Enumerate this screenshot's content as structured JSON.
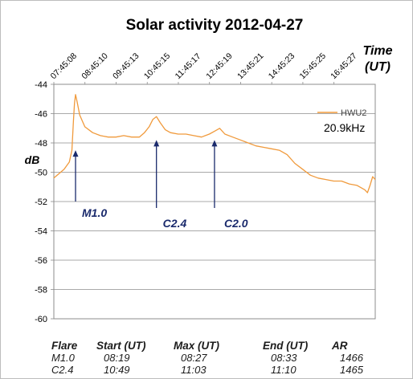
{
  "chart_data": {
    "type": "line",
    "title": "Solar activity 2012-04-27",
    "xlabel": "Time (UT)",
    "xlabel_line1": "Time",
    "xlabel_line2": "(UT)",
    "ylabel": "dB",
    "ylim": [
      -60,
      -44
    ],
    "yticks": [
      -44,
      -46,
      -48,
      -50,
      -52,
      -54,
      -56,
      -58,
      -60
    ],
    "ytick_labels": [
      "-44",
      "-46",
      "-48",
      "-50",
      "-52",
      "-54",
      "-56",
      "-58",
      "-60"
    ],
    "xlim": [
      "07:45:08",
      "18:05:00"
    ],
    "xtick_labels": [
      "07:45:08",
      "08:45:10",
      "09:45:13",
      "10:45:15",
      "11:45:17",
      "12:45:19",
      "13:45:21",
      "14:45:23",
      "15:45:25",
      "16:45:27"
    ],
    "grid": "horizontal",
    "legend_position": "top-right",
    "series": [
      {
        "name": "HWU2",
        "label": "20.9kHz",
        "color": "#f09a3c",
        "x": [
          "07:45",
          "07:55",
          "08:05",
          "08:15",
          "08:20",
          "08:23",
          "08:25",
          "08:27",
          "08:30",
          "08:35",
          "08:45",
          "09:00",
          "09:15",
          "09:30",
          "09:45",
          "10:00",
          "10:15",
          "10:30",
          "10:40",
          "10:49",
          "10:56",
          "11:03",
          "11:10",
          "11:20",
          "11:30",
          "11:45",
          "12:00",
          "12:15",
          "12:30",
          "12:45",
          "12:55",
          "13:05",
          "13:15",
          "13:30",
          "13:45",
          "14:00",
          "14:15",
          "14:30",
          "14:45",
          "15:00",
          "15:15",
          "15:30",
          "15:45",
          "16:00",
          "16:15",
          "16:30",
          "16:45",
          "17:00",
          "17:15",
          "17:30",
          "17:45",
          "17:50",
          "17:55",
          "18:00",
          "18:05"
        ],
        "y": [
          -50.4,
          -50.1,
          -49.8,
          -49.3,
          -48.5,
          -46.5,
          -45.3,
          -44.7,
          -45.2,
          -46.1,
          -46.9,
          -47.3,
          -47.5,
          -47.6,
          -47.6,
          -47.5,
          -47.6,
          -47.6,
          -47.3,
          -46.9,
          -46.4,
          -46.2,
          -46.6,
          -47.1,
          -47.3,
          -47.4,
          -47.4,
          -47.5,
          -47.6,
          -47.4,
          -47.2,
          -47.0,
          -47.4,
          -47.6,
          -47.8,
          -48.0,
          -48.2,
          -48.3,
          -48.4,
          -48.5,
          -48.8,
          -49.4,
          -49.8,
          -50.2,
          -50.4,
          -50.5,
          -50.6,
          -50.6,
          -50.8,
          -50.9,
          -51.2,
          -51.4,
          -50.9,
          -50.3,
          -50.5
        ]
      }
    ],
    "annotations": [
      {
        "label": "M1.0",
        "time": "08:27",
        "level": -48.5
      },
      {
        "label": "C2.4",
        "time": "11:03",
        "level": -47.8
      },
      {
        "label": "C2.0",
        "time": "12:55",
        "level": -47.8
      }
    ]
  },
  "flare_table": {
    "headers": [
      "Flare",
      "Start (UT)",
      "Max (UT)",
      "End (UT)",
      "AR"
    ],
    "rows": [
      [
        "M1.0",
        "08:19",
        "08:27",
        "08:33",
        "1466"
      ],
      [
        "C2.4",
        "10:49",
        "11:03",
        "11:10",
        "1465"
      ]
    ]
  }
}
